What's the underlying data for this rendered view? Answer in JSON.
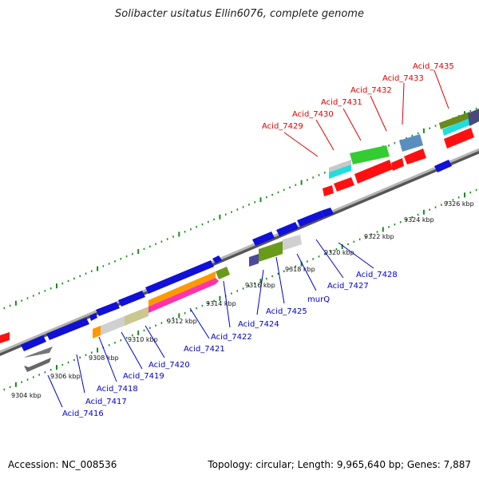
{
  "title": "Solibacter usitatus Ellin6076, complete genome",
  "footer": {
    "accession": "Accession: NC_008536",
    "summary": "Topology: circular; Length: 9,965,640 bp; Genes: 7,887"
  },
  "colors": {
    "forward_label": "#e00000",
    "reverse_label": "#0000cc",
    "backbone": "#8c8c8c",
    "tick": "#1a8a1a"
  },
  "ticks": [
    "9304 kbp",
    "9306 kbp",
    "9308 kbp",
    "9310 kbp",
    "9312 kbp",
    "9314 kbp",
    "9316 kbp",
    "9318 kbp",
    "9320 kbp",
    "9322 kbp",
    "9324 kbp",
    "9326 kbp"
  ],
  "reverse_labels": [
    "Acid_7416",
    "Acid_7417",
    "Acid_7418",
    "Acid_7419",
    "Acid_7420",
    "Acid_7421",
    "Acid_7422",
    "Acid_7424",
    "Acid_7425",
    "murQ",
    "Acid_7427",
    "Acid_7428"
  ],
  "forward_labels": [
    "Acid_7429",
    "Acid_7430",
    "Acid_7431",
    "Acid_7432",
    "Acid_7433",
    "Acid_7435"
  ]
}
